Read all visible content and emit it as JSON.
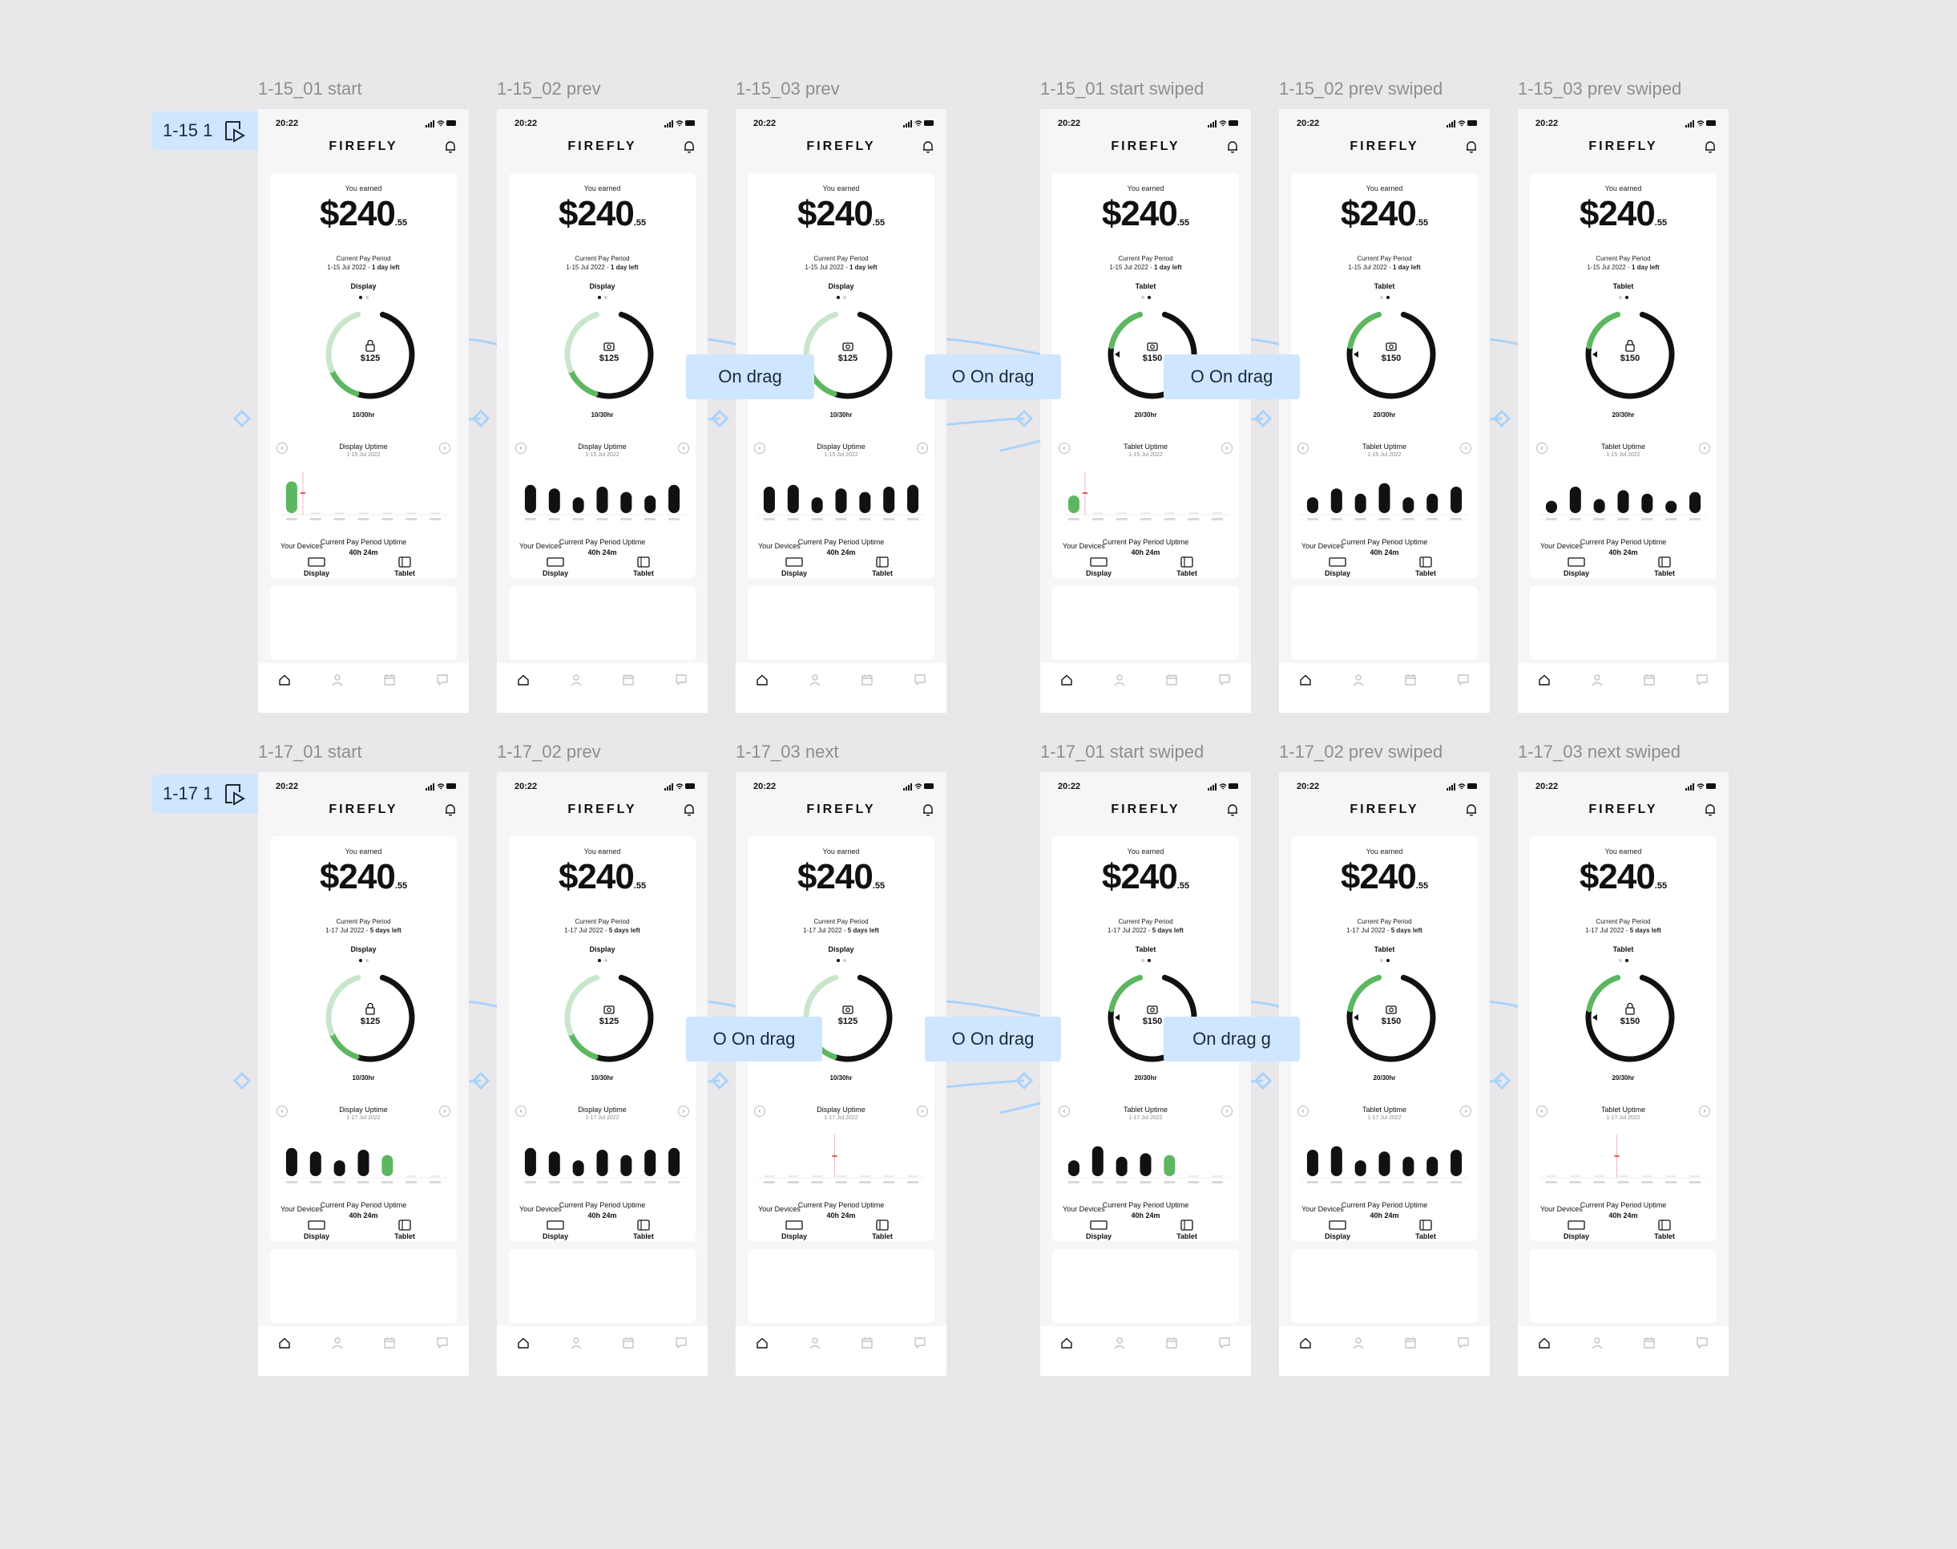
{
  "colors": {
    "canvas": "#e9e7ea",
    "label": "#8e8e8e",
    "accent": "#5db760",
    "accent_light": "#c9e6ca",
    "flow": "#cfe6ff",
    "wire": "#a9d3fb",
    "track": "#e6e6e6",
    "dark": "#111111"
  },
  "flows": [
    {
      "label": "1-15 1",
      "icon": "play-flow-icon"
    },
    {
      "label": "1-17 1",
      "icon": "play-flow-icon"
    }
  ],
  "drag_labels": [
    "On drag",
    "O  On drag",
    "O  On drag",
    "O  On drag",
    "O  On drag",
    "On drag  g"
  ],
  "frames": [
    {
      "label": "1-15_01 start",
      "time": "20:22",
      "app": "FIREFLY",
      "earned_label": "You earned",
      "amount": "$240",
      "cents": ".55",
      "period_title": "Current Pay Period",
      "period_range": "1-15 Jul 2022 - ",
      "period_left": "1 day left",
      "device": "Display",
      "dot": 0,
      "gauge_icon": "lock-icon",
      "gauge_value": "$125",
      "hours": "10/30hr",
      "progress": 0.33,
      "uptime_title": "Display Uptime",
      "uptime_date": "1-15 Jul 2022",
      "bars": [
        0.9,
        0,
        0,
        0,
        0,
        0,
        0
      ],
      "highlight": 0,
      "single": true,
      "pp_title": "Current Pay Period Uptime",
      "pp_value": "40h 24m",
      "devices_title": "Your Devices",
      "devices": [
        "Display",
        "Tablet"
      ]
    },
    {
      "label": "1-15_02 prev",
      "time": "20:22",
      "app": "FIREFLY",
      "earned_label": "You earned",
      "amount": "$240",
      "cents": ".55",
      "period_title": "Current Pay Period",
      "period_range": "1-15 Jul 2022 - ",
      "period_left": "1 day left",
      "device": "Display",
      "dot": 0,
      "gauge_icon": "camera-icon",
      "gauge_value": "$125",
      "hours": "10/30hr",
      "progress": 0.33,
      "uptime_title": "Display Uptime",
      "uptime_date": "1-15 Jul 2022",
      "bars": [
        0.8,
        0.7,
        0.45,
        0.75,
        0.6,
        0.5,
        0.8
      ],
      "highlight": -1,
      "single": false,
      "pp_title": "Current Pay Period Uptime",
      "pp_value": "40h 24m",
      "devices_title": "Your Devices",
      "devices": [
        "Display",
        "Tablet"
      ]
    },
    {
      "label": "1-15_03 prev",
      "time": "20:22",
      "app": "FIREFLY",
      "earned_label": "You earned",
      "amount": "$240",
      "cents": ".55",
      "period_title": "Current Pay Period",
      "period_range": "1-15 Jul 2022 - ",
      "period_left": "1 day left",
      "device": "Display",
      "dot": 0,
      "gauge_icon": "camera-icon",
      "gauge_value": "$125",
      "hours": "10/30hr",
      "progress": 0.33,
      "uptime_title": "Display Uptime",
      "uptime_date": "1-15 Jul 2022",
      "bars": [
        0.75,
        0.8,
        0.45,
        0.7,
        0.6,
        0.75,
        0.8
      ],
      "highlight": -1,
      "single": false,
      "pp_title": "Current Pay Period Uptime",
      "pp_value": "40h 24m",
      "devices_title": "Your Devices",
      "devices": [
        "Display",
        "Tablet"
      ]
    },
    {
      "label": "1-15_01 start swiped",
      "time": "20:22",
      "app": "FIREFLY",
      "earned_label": "You earned",
      "amount": "$240",
      "cents": ".55",
      "period_title": "Current Pay Period",
      "period_range": "1-15 Jul 2022 - ",
      "period_left": "1 day left",
      "device": "Tablet",
      "dot": 1,
      "gauge_icon": "camera-icon",
      "gauge_value": "$150",
      "hours": "20/30hr",
      "progress": 0.67,
      "uptime_title": "Tablet Uptime",
      "uptime_date": "1-15 Jul 2022",
      "bars": [
        0.5,
        0,
        0,
        0,
        0,
        0,
        0
      ],
      "highlight": 0,
      "single": true,
      "pp_title": "Current Pay Period Uptime",
      "pp_value": "40h 24m",
      "devices_title": "Your Devices",
      "devices": [
        "Display",
        "Tablet"
      ]
    },
    {
      "label": "1-15_02 prev swiped",
      "time": "20:22",
      "app": "FIREFLY",
      "earned_label": "You earned",
      "amount": "$240",
      "cents": ".55",
      "period_title": "Current Pay Period",
      "period_range": "1-15 Jul 2022 - ",
      "period_left": "1 day left",
      "device": "Tablet",
      "dot": 1,
      "gauge_icon": "camera-icon",
      "gauge_value": "$150",
      "hours": "20/30hr",
      "progress": 0.67,
      "uptime_title": "Tablet Uptime",
      "uptime_date": "1-15 Jul 2022",
      "bars": [
        0.45,
        0.7,
        0.55,
        0.85,
        0.45,
        0.55,
        0.75
      ],
      "highlight": -1,
      "single": false,
      "pp_title": "Current Pay Period Uptime",
      "pp_value": "40h 24m",
      "devices_title": "Your Devices",
      "devices": [
        "Display",
        "Tablet"
      ]
    },
    {
      "label": "1-15_03 prev swiped",
      "time": "20:22",
      "app": "FIREFLY",
      "earned_label": "You earned",
      "amount": "$240",
      "cents": ".55",
      "period_title": "Current Pay Period",
      "period_range": "1-15 Jul 2022 - ",
      "period_left": "1 day left",
      "device": "Tablet",
      "dot": 1,
      "gauge_icon": "lock-icon",
      "gauge_value": "$150",
      "hours": "20/30hr",
      "progress": 0.67,
      "uptime_title": "Tablet Uptime",
      "uptime_date": "1-15 Jul 2022",
      "bars": [
        0.35,
        0.75,
        0.4,
        0.65,
        0.55,
        0.35,
        0.6
      ],
      "highlight": -1,
      "single": false,
      "pp_title": "Current Pay Period Uptime",
      "pp_value": "40h 24m",
      "devices_title": "Your Devices",
      "devices": [
        "Display",
        "Tablet"
      ]
    },
    {
      "label": "1-17_01 start",
      "time": "20:22",
      "app": "FIREFLY",
      "earned_label": "You earned",
      "amount": "$240",
      "cents": ".55",
      "period_title": "Current Pay Period",
      "period_range": "1-17 Jul 2022 - ",
      "period_left": "5 days left",
      "device": "Display",
      "dot": 0,
      "gauge_icon": "lock-icon",
      "gauge_value": "$125",
      "hours": "10/30hr",
      "progress": 0.33,
      "uptime_title": "Display Uptime",
      "uptime_date": "1-17 Jul 2022",
      "bars": [
        0.8,
        0.7,
        0.45,
        0.75,
        0.6,
        0,
        0
      ],
      "highlight": 4,
      "single": false,
      "pp_title": "Current Pay Period Uptime",
      "pp_value": "40h 24m",
      "devices_title": "Your Devices",
      "devices": [
        "Display",
        "Tablet"
      ]
    },
    {
      "label": "1-17_02 prev",
      "time": "20:22",
      "app": "FIREFLY",
      "earned_label": "You earned",
      "amount": "$240",
      "cents": ".55",
      "period_title": "Current Pay Period",
      "period_range": "1-17 Jul 2022 - ",
      "period_left": "5 days left",
      "device": "Display",
      "dot": 0,
      "gauge_icon": "camera-icon",
      "gauge_value": "$125",
      "hours": "10/30hr",
      "progress": 0.33,
      "uptime_title": "Display Uptime",
      "uptime_date": "1-17 Jul 2022",
      "bars": [
        0.8,
        0.7,
        0.45,
        0.75,
        0.6,
        0.75,
        0.8
      ],
      "highlight": -1,
      "single": false,
      "pp_title": "Current Pay Period Uptime",
      "pp_value": "40h 24m",
      "devices_title": "Your Devices",
      "devices": [
        "Display",
        "Tablet"
      ]
    },
    {
      "label": "1-17_03 next",
      "time": "20:22",
      "app": "FIREFLY",
      "earned_label": "You earned",
      "amount": "$240",
      "cents": ".55",
      "period_title": "Current Pay Period",
      "period_range": "1-17 Jul 2022 - ",
      "period_left": "5 days left",
      "device": "Display",
      "dot": 0,
      "gauge_icon": "camera-icon",
      "gauge_value": "$125",
      "hours": "10/30hr",
      "progress": 0.33,
      "uptime_title": "Display Uptime",
      "uptime_date": "1-17 Jul 2022",
      "bars": [
        0,
        0,
        0,
        0,
        0,
        0,
        0
      ],
      "highlight": -1,
      "single": false,
      "pp_title": "Current Pay Period Uptime",
      "pp_value": "40h 24m",
      "devices_title": "Your Devices",
      "devices": [
        "Display",
        "Tablet"
      ]
    },
    {
      "label": "1-17_01 start swiped",
      "time": "20:22",
      "app": "FIREFLY",
      "earned_label": "You earned",
      "amount": "$240",
      "cents": ".55",
      "period_title": "Current Pay Period",
      "period_range": "1-17 Jul 2022 - ",
      "period_left": "5 days left",
      "device": "Tablet",
      "dot": 1,
      "gauge_icon": "camera-icon",
      "gauge_value": "$150",
      "hours": "20/30hr",
      "progress": 0.67,
      "uptime_title": "Tablet Uptime",
      "uptime_date": "1-17 Jul 2022",
      "bars": [
        0.45,
        0.85,
        0.55,
        0.65,
        0.6,
        0,
        0
      ],
      "highlight": 4,
      "single": false,
      "pp_title": "Current Pay Period Uptime",
      "pp_value": "40h 24m",
      "devices_title": "Your Devices",
      "devices": [
        "Display",
        "Tablet"
      ]
    },
    {
      "label": "1-17_02 prev swiped",
      "time": "20:22",
      "app": "FIREFLY",
      "earned_label": "You earned",
      "amount": "$240",
      "cents": ".55",
      "period_title": "Current Pay Period",
      "period_range": "1-17 Jul 2022 - ",
      "period_left": "5 days left",
      "device": "Tablet",
      "dot": 1,
      "gauge_icon": "camera-icon",
      "gauge_value": "$150",
      "hours": "20/30hr",
      "progress": 0.67,
      "uptime_title": "Tablet Uptime",
      "uptime_date": "1-17 Jul 2022",
      "bars": [
        0.75,
        0.85,
        0.45,
        0.7,
        0.55,
        0.55,
        0.75
      ],
      "highlight": -1,
      "single": false,
      "pp_title": "Current Pay Period Uptime",
      "pp_value": "40h 24m",
      "devices_title": "Your Devices",
      "devices": [
        "Display",
        "Tablet"
      ]
    },
    {
      "label": "1-17_03 next swiped",
      "time": "20:22",
      "app": "FIREFLY",
      "earned_label": "You earned",
      "amount": "$240",
      "cents": ".55",
      "period_title": "Current Pay Period",
      "period_range": "1-17 Jul 2022 - ",
      "period_left": "5 days left",
      "device": "Tablet",
      "dot": 1,
      "gauge_icon": "lock-icon",
      "gauge_value": "$150",
      "hours": "20/30hr",
      "progress": 0.67,
      "uptime_title": "Tablet Uptime",
      "uptime_date": "1-17 Jul 2022",
      "bars": [
        0,
        0,
        0,
        0,
        0,
        0,
        0
      ],
      "highlight": -1,
      "single": false,
      "pp_title": "Current Pay Period Uptime",
      "pp_value": "40h 24m",
      "devices_title": "Your Devices",
      "devices": [
        "Display",
        "Tablet"
      ]
    }
  ]
}
